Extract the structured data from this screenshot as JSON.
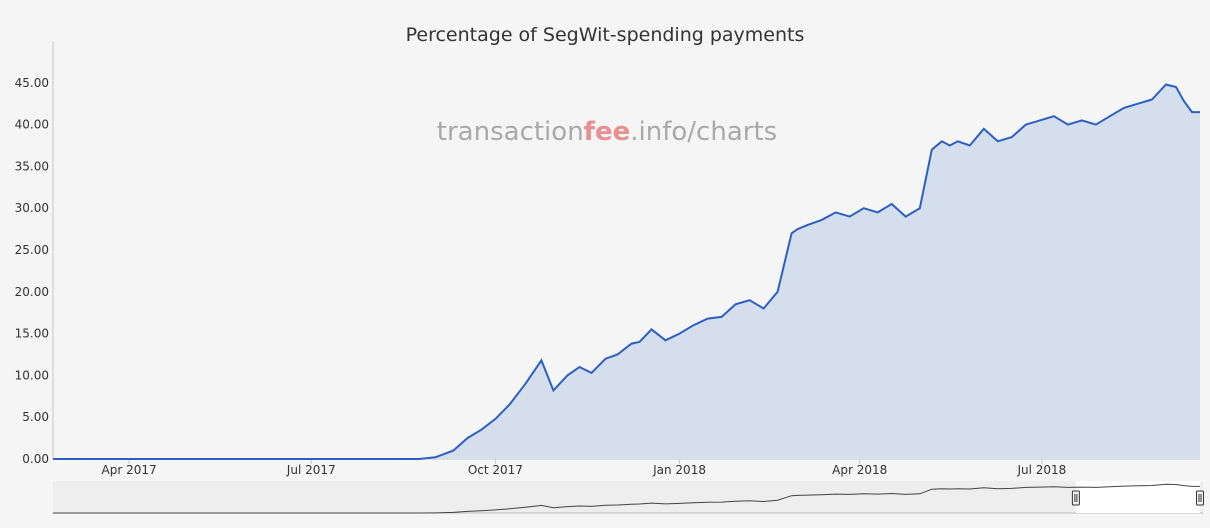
{
  "chart_data": {
    "type": "area",
    "title": "Percentage of SegWit-spending payments",
    "watermark": {
      "pre": "transaction",
      "accent": "fee",
      "post": ".info/charts"
    },
    "xlabel": "",
    "ylabel": "",
    "ylim": [
      0,
      50
    ],
    "yticks": [
      "0.00",
      "5.00",
      "10.00",
      "15.00",
      "20.00",
      "25.00",
      "30.00",
      "35.00",
      "40.00",
      "45.00"
    ],
    "xlim": [
      "2017-02-22",
      "2018-09-18"
    ],
    "xticks": [
      {
        "date": "2017-04-01",
        "label": "Apr 2017"
      },
      {
        "date": "2017-07-01",
        "label": "Jul 2017"
      },
      {
        "date": "2017-10-01",
        "label": "Oct 2017"
      },
      {
        "date": "2018-01-01",
        "label": "Jan 2018"
      },
      {
        "date": "2018-04-01",
        "label": "Apr 2018"
      },
      {
        "date": "2018-07-01",
        "label": "Jul 2018"
      }
    ],
    "grid": false,
    "colors": {
      "line": "#2c5fc4",
      "fill": "#d5deed",
      "accent": "#e88f8f",
      "watermark": "#a9a9a9"
    },
    "series": [
      {
        "x": [
          "2017-02-22",
          "2017-05-01",
          "2017-07-01",
          "2017-08-01",
          "2017-08-24",
          "2017-09-01",
          "2017-09-10",
          "2017-09-17",
          "2017-09-24",
          "2017-10-01",
          "2017-10-08",
          "2017-10-16",
          "2017-10-24",
          "2017-10-30",
          "2017-11-06",
          "2017-11-12",
          "2017-11-18",
          "2017-11-25",
          "2017-12-01",
          "2017-12-08",
          "2017-12-12",
          "2017-12-18",
          "2017-12-25",
          "2018-01-01",
          "2018-01-08",
          "2018-01-15",
          "2018-01-22",
          "2018-01-29",
          "2018-02-05",
          "2018-02-12",
          "2018-02-19",
          "2018-02-26",
          "2018-03-01",
          "2018-03-06",
          "2018-03-13",
          "2018-03-20",
          "2018-03-27",
          "2018-04-03",
          "2018-04-10",
          "2018-04-17",
          "2018-04-24",
          "2018-05-01",
          "2018-05-07",
          "2018-05-12",
          "2018-05-16",
          "2018-05-20",
          "2018-05-26",
          "2018-06-02",
          "2018-06-09",
          "2018-06-16",
          "2018-06-23",
          "2018-06-30",
          "2018-07-07",
          "2018-07-14",
          "2018-07-21",
          "2018-07-28",
          "2018-08-04",
          "2018-08-11",
          "2018-08-18",
          "2018-08-25",
          "2018-09-01",
          "2018-09-06",
          "2018-09-10",
          "2018-09-14",
          "2018-09-18"
        ],
        "values": [
          0,
          0,
          0,
          0,
          0,
          0.2,
          1.0,
          2.5,
          3.5,
          4.8,
          6.5,
          9.0,
          11.8,
          8.2,
          10.0,
          11.0,
          10.3,
          12.0,
          12.5,
          13.8,
          14.0,
          15.5,
          14.2,
          15.0,
          16.0,
          16.8,
          17.0,
          18.5,
          19.0,
          18.0,
          20.0,
          27.0,
          27.5,
          28.0,
          28.6,
          29.5,
          29.0,
          30.0,
          29.5,
          30.5,
          29.0,
          30.0,
          37.0,
          38.0,
          37.5,
          38.0,
          37.5,
          39.5,
          38.0,
          38.5,
          40.0,
          40.5,
          41.0,
          40.0,
          40.5,
          40.0,
          41.0,
          42.0,
          42.5,
          43.0,
          44.8,
          44.5,
          42.8,
          41.5,
          41.5
        ]
      }
    ],
    "navigator": {
      "from": "2018-07-18",
      "to": "2018-09-18"
    }
  }
}
